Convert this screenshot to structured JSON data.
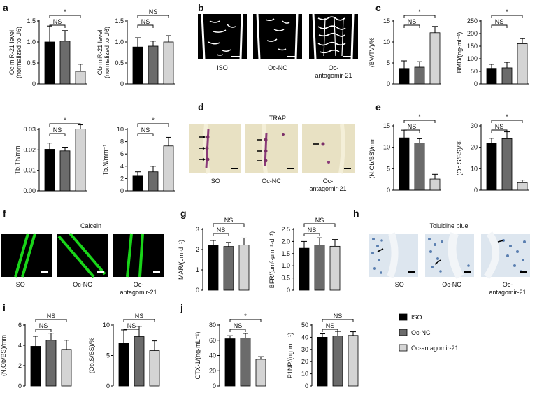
{
  "panels": {
    "a": "a",
    "b": "b",
    "c": "c",
    "d": "d",
    "e": "e",
    "f": "f",
    "g": "g",
    "h": "h",
    "i": "i",
    "j": "j"
  },
  "groups": [
    "ISO",
    "Oc-NC",
    "Oc-antagomir-21"
  ],
  "image_labels": [
    "ISO",
    "Oc-NC",
    "Oc-",
    "antagomir-21"
  ],
  "image_titles": {
    "d": "TRAP",
    "f": "Calcein",
    "h": "Toluidine blue"
  },
  "legend": [
    {
      "label": "ISO",
      "color": "#000000"
    },
    {
      "label": "Oc-NC",
      "color": "#6b6b6b"
    },
    {
      "label": "Oc-antagomir-21",
      "color": "#d4d4d4"
    }
  ],
  "colors": {
    "iso": "#000000",
    "ocnc": "#6b6b6b",
    "antag": "#d4d4d4",
    "green": "#19d419",
    "trap_bg": "#e8e1c3",
    "tol_bg": "#dde6ef"
  },
  "chart_data": [
    {
      "id": "a1",
      "type": "bar",
      "ylabel": [
        "Oc miR-21 level",
        "(normalized to U6)"
      ],
      "ylim": [
        0,
        1.5
      ],
      "yticks": [
        "0",
        "0.5",
        "1.0",
        "1.5"
      ],
      "tickvals": [
        0,
        0.5,
        1.0,
        1.5
      ],
      "values": [
        1.0,
        1.02,
        0.3
      ],
      "errors": [
        0.38,
        0.25,
        0.17
      ],
      "brackets": [
        {
          "from": 0,
          "to": 1,
          "label": "NS"
        },
        {
          "from": 0,
          "to": 2,
          "label": "*"
        }
      ]
    },
    {
      "id": "a2",
      "type": "bar",
      "ylabel": [
        "Ob miR-21 level",
        "(normalized to U6)"
      ],
      "ylim": [
        0,
        1.5
      ],
      "yticks": [
        "0",
        "0.5",
        "1.0",
        "1.5"
      ],
      "tickvals": [
        0,
        0.5,
        1.0,
        1.5
      ],
      "values": [
        0.88,
        0.9,
        1.0
      ],
      "errors": [
        0.22,
        0.12,
        0.15
      ],
      "brackets": [
        {
          "from": 0,
          "to": 1,
          "label": "NS"
        },
        {
          "from": 0,
          "to": 2,
          "label": "NS"
        }
      ]
    },
    {
      "id": "c1",
      "type": "bar",
      "ylabel": [
        "(BV/TV)/%"
      ],
      "ylim": [
        0,
        15
      ],
      "yticks": [
        "0",
        "5",
        "10",
        "15"
      ],
      "tickvals": [
        0,
        5,
        10,
        15
      ],
      "values": [
        3.7,
        4.0,
        12.2
      ],
      "errors": [
        1.8,
        1.3,
        1.5
      ],
      "brackets": [
        {
          "from": 0,
          "to": 1,
          "label": "NS"
        },
        {
          "from": 0,
          "to": 2,
          "label": "*"
        }
      ]
    },
    {
      "id": "c2",
      "type": "bar",
      "ylabel": [
        "BMD/(ng·ml⁻¹)"
      ],
      "ylim": [
        0,
        250
      ],
      "yticks": [
        "0",
        "50",
        "100",
        "150",
        "200",
        "250"
      ],
      "tickvals": [
        0,
        50,
        100,
        150,
        200,
        250
      ],
      "values": [
        62,
        64,
        160
      ],
      "errors": [
        16,
        22,
        20
      ],
      "brackets": [
        {
          "from": 0,
          "to": 1,
          "label": "NS"
        },
        {
          "from": 0,
          "to": 2,
          "label": "*"
        }
      ]
    },
    {
      "id": "tb1",
      "type": "bar",
      "ylabel": [
        "Tb.Th/mm"
      ],
      "ylim": [
        0,
        0.03
      ],
      "yticks": [
        "0.00",
        "0.01",
        "0.02",
        "0.03"
      ],
      "tickvals": [
        0,
        0.01,
        0.02,
        0.03
      ],
      "values": [
        0.0203,
        0.0195,
        0.0302
      ],
      "errors": [
        0.003,
        0.0018,
        0.002
      ],
      "brackets": [
        {
          "from": 0,
          "to": 1,
          "label": "NS"
        },
        {
          "from": 0,
          "to": 2,
          "label": "*"
        }
      ]
    },
    {
      "id": "tb2",
      "type": "bar",
      "ylabel": [
        "Tb.N/mm⁻¹"
      ],
      "ylim": [
        0,
        10
      ],
      "yticks": [
        "0",
        "2",
        "4",
        "6",
        "8",
        "10"
      ],
      "tickvals": [
        0,
        2,
        4,
        6,
        8,
        10
      ],
      "values": [
        2.4,
        3.1,
        7.3
      ],
      "errors": [
        0.7,
        0.9,
        1.4
      ],
      "brackets": [
        {
          "from": 0,
          "to": 1,
          "label": "NS"
        },
        {
          "from": 0,
          "to": 2,
          "label": "*"
        }
      ]
    },
    {
      "id": "e1",
      "type": "bar",
      "ylabel": [
        "(N.Ob/BS)/mm"
      ],
      "ylim": [
        0,
        15
      ],
      "yticks": [
        "0",
        "5",
        "10",
        "15"
      ],
      "tickvals": [
        0,
        5,
        10,
        15
      ],
      "values": [
        12.2,
        11.0,
        2.6
      ],
      "errors": [
        1.8,
        1.0,
        1.1
      ],
      "brackets": [
        {
          "from": 0,
          "to": 1,
          "label": "NS"
        },
        {
          "from": 0,
          "to": 2,
          "label": "*"
        }
      ]
    },
    {
      "id": "e2",
      "type": "bar",
      "ylabel": [
        "(Oc.S/BS)/%"
      ],
      "ylim": [
        0,
        30
      ],
      "yticks": [
        "0",
        "10",
        "20",
        "30"
      ],
      "tickvals": [
        0,
        10,
        20,
        30
      ],
      "values": [
        22,
        24,
        3.5
      ],
      "errors": [
        2.2,
        3.2,
        1.2
      ],
      "brackets": [
        {
          "from": 0,
          "to": 1,
          "label": "NS"
        },
        {
          "from": 0,
          "to": 2,
          "label": "*"
        }
      ]
    },
    {
      "id": "g1",
      "type": "bar",
      "ylabel": [
        "MAR/(μm·d⁻¹)"
      ],
      "ylim": [
        0,
        3
      ],
      "yticks": [
        "0",
        "1",
        "2",
        "3"
      ],
      "tickvals": [
        0,
        1,
        2,
        3
      ],
      "values": [
        2.2,
        2.15,
        2.22
      ],
      "errors": [
        0.25,
        0.2,
        0.35
      ],
      "brackets": [
        {
          "from": 0,
          "to": 1,
          "label": "NS"
        },
        {
          "from": 0,
          "to": 2,
          "label": "NS"
        }
      ]
    },
    {
      "id": "g2",
      "type": "bar",
      "ylabel": [
        "BFR/(μm³·μm⁻²·d⁻¹)"
      ],
      "ylim": [
        0,
        2.5
      ],
      "yticks": [
        "0",
        "0.5",
        "1.0",
        "1.5",
        "2.0",
        "2.5"
      ],
      "tickvals": [
        0,
        0.5,
        1.0,
        1.5,
        2.0,
        2.5
      ],
      "values": [
        1.72,
        1.85,
        1.8
      ],
      "errors": [
        0.28,
        0.3,
        0.28
      ],
      "brackets": [
        {
          "from": 0,
          "to": 1,
          "label": "NS"
        },
        {
          "from": 0,
          "to": 2,
          "label": "NS"
        }
      ]
    },
    {
      "id": "i1",
      "type": "bar",
      "ylabel": [
        "(N.Ob/BS)/mm"
      ],
      "ylim": [
        0,
        6
      ],
      "yticks": [
        "0",
        "2",
        "4",
        "6"
      ],
      "tickvals": [
        0,
        2,
        4,
        6
      ],
      "values": [
        3.9,
        4.5,
        3.6
      ],
      "errors": [
        1.0,
        0.7,
        0.9
      ],
      "brackets": [
        {
          "from": 0,
          "to": 1,
          "label": "NS"
        },
        {
          "from": 0,
          "to": 2,
          "label": "NS"
        }
      ]
    },
    {
      "id": "i2",
      "type": "bar",
      "ylabel": [
        "(Ob.S/BS)/%"
      ],
      "ylim": [
        0,
        10
      ],
      "yticks": [
        "0",
        "5",
        "10"
      ],
      "tickvals": [
        0,
        5,
        10
      ],
      "values": [
        7.0,
        8.1,
        5.8
      ],
      "errors": [
        2.2,
        1.7,
        1.6
      ],
      "brackets": [
        {
          "from": 0,
          "to": 1,
          "label": "NS"
        },
        {
          "from": 0,
          "to": 2,
          "label": "NS"
        }
      ]
    },
    {
      "id": "j1",
      "type": "bar",
      "ylabel": [
        "CTX-1/(ng·mL⁻¹)"
      ],
      "ylim": [
        0,
        80
      ],
      "yticks": [
        "0",
        "20",
        "40",
        "60",
        "80"
      ],
      "tickvals": [
        0,
        20,
        40,
        60,
        80
      ],
      "values": [
        62,
        63,
        35
      ],
      "errors": [
        4,
        6,
        3.5
      ],
      "brackets": [
        {
          "from": 0,
          "to": 1,
          "label": "NS"
        },
        {
          "from": 0,
          "to": 2,
          "label": "*"
        }
      ]
    },
    {
      "id": "j2",
      "type": "bar",
      "ylabel": [
        "P1NP/(ng·mL⁻¹)"
      ],
      "ylim": [
        0,
        50
      ],
      "yticks": [
        "0",
        "10",
        "20",
        "30",
        "40",
        "50"
      ],
      "tickvals": [
        0,
        10,
        20,
        30,
        40,
        50
      ],
      "values": [
        40,
        41,
        41.5
      ],
      "errors": [
        2.8,
        3.8,
        3.0
      ],
      "brackets": [
        {
          "from": 0,
          "to": 1,
          "label": "NS"
        },
        {
          "from": 0,
          "to": 2,
          "label": "NS"
        }
      ]
    }
  ]
}
